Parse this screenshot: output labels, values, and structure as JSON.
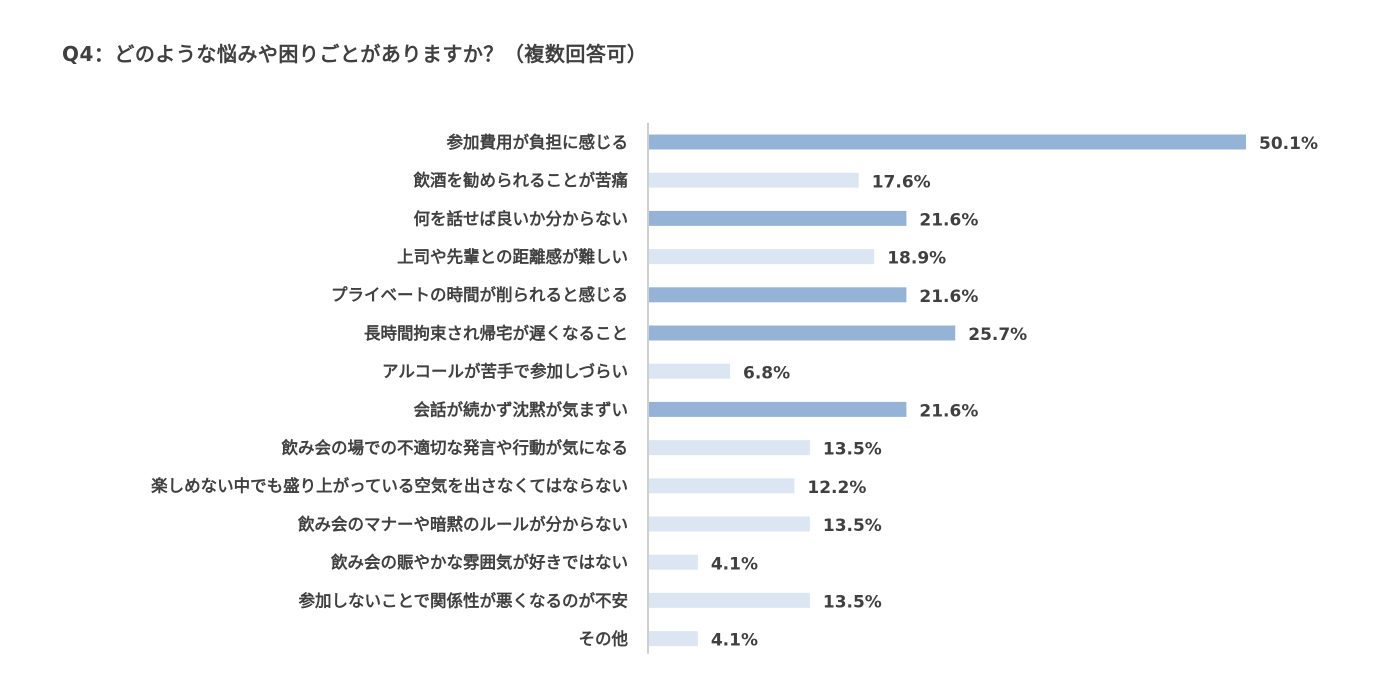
{
  "title": "Q4：どのような悩みや困りごとがありますか？（複数回答可）",
  "chart_data": {
    "type": "bar",
    "orientation": "horizontal",
    "title": "Q4：どのような悩みや困りごとがありますか？（複数回答可）",
    "xlabel": "",
    "ylabel": "",
    "xlim": [
      0,
      50.1
    ],
    "grid": false,
    "value_suffix": "%",
    "categories": [
      "参加費用が負担に感じる",
      "飲酒を勧められることが苦痛",
      "何を話せば良いか分からない",
      "上司や先輩との距離感が難しい",
      "プライベートの時間が削られると感じる",
      "長時間拘束され帰宅が遅くなること",
      "アルコールが苦手で参加しづらい",
      "会話が続かず沈黙が気まずい",
      "飲み会の場での不適切な発言や行動が気になる",
      "楽しめない中でも盛り上がっている空気を出さなくてはならない",
      "飲み会のマナーや暗黙のルールが分からない",
      "飲み会の賑やかな雰囲気が好きではない",
      "参加しないことで関係性が悪くなるのが不安",
      "その他"
    ],
    "values": [
      50.1,
      17.6,
      21.6,
      18.9,
      21.6,
      25.7,
      6.8,
      21.6,
      13.5,
      12.2,
      13.5,
      4.1,
      13.5,
      4.1
    ],
    "value_labels": [
      "50.1%",
      "17.6%",
      "21.6%",
      "18.9%",
      "21.6%",
      "25.7%",
      "6.8%",
      "21.6%",
      "13.5%",
      "12.2%",
      "13.5%",
      "4.1%",
      "13.5%",
      "4.1%"
    ],
    "highlighted": [
      true,
      false,
      true,
      false,
      true,
      true,
      false,
      true,
      false,
      false,
      false,
      false,
      false,
      false
    ],
    "colors": {
      "highlight": "#95b3d7",
      "normal": "#dce6f2",
      "axis": "#bfbfbf",
      "text": "#404040"
    }
  }
}
